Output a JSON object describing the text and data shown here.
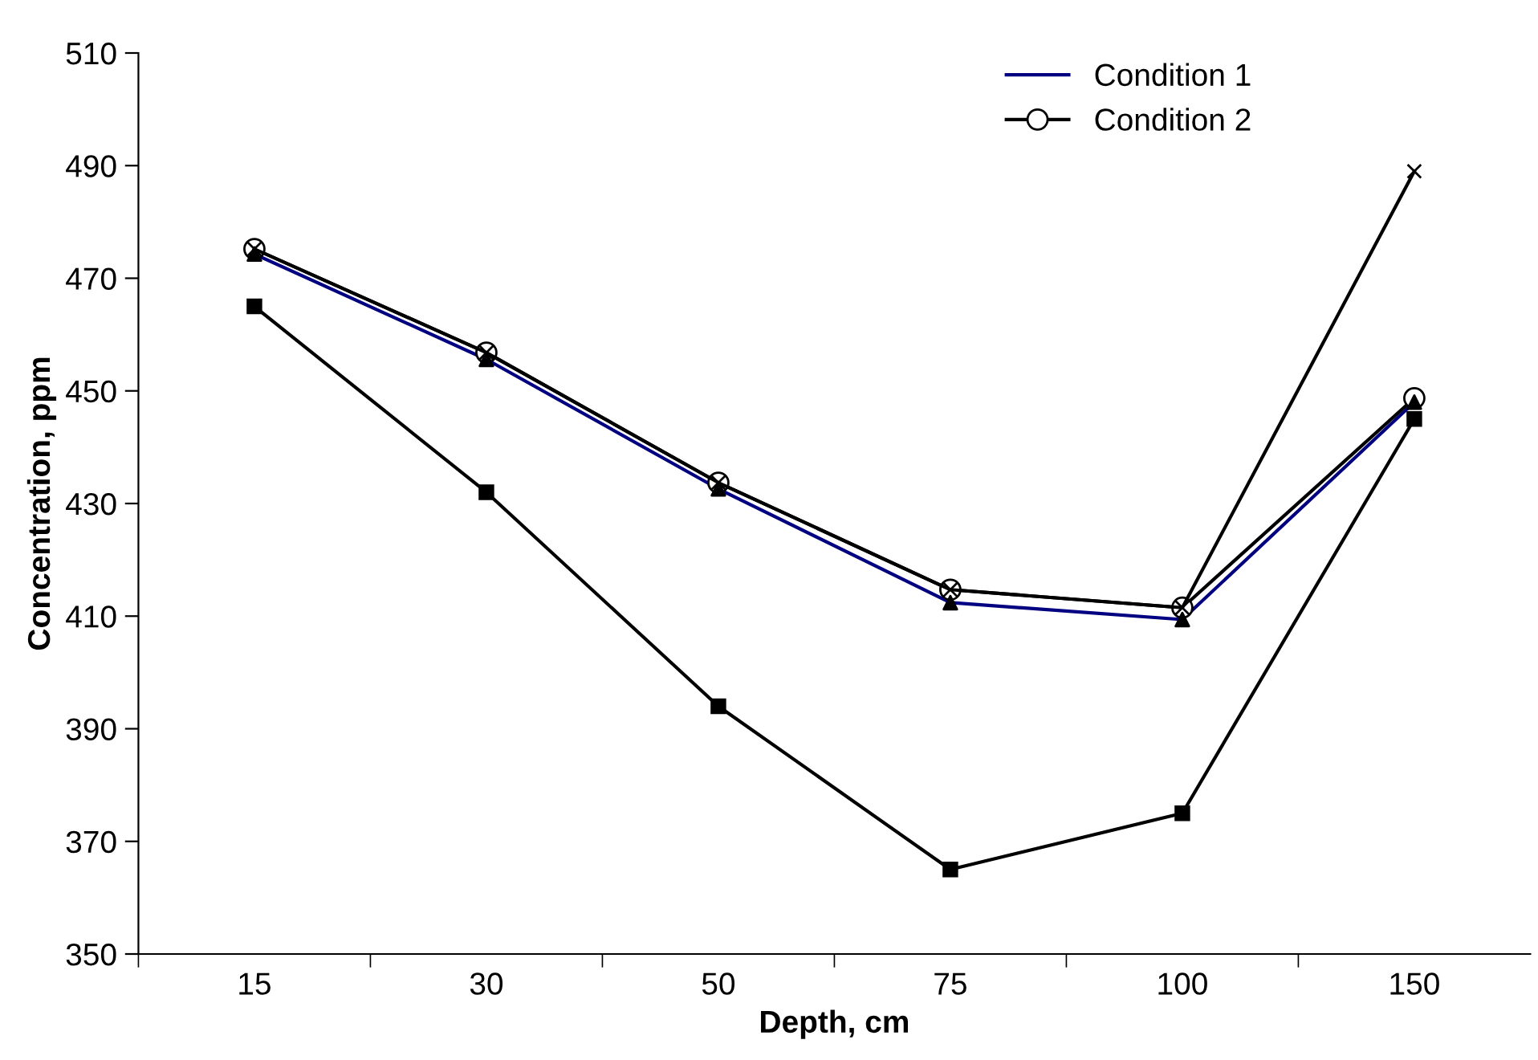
{
  "chart_data": {
    "type": "line",
    "xlabel": "Depth, cm",
    "ylabel": "Concentration, ppm",
    "categories": [
      "15",
      "30",
      "50",
      "75",
      "100",
      "150"
    ],
    "series": [
      {
        "name": "Condition 1",
        "color": "#000080",
        "marker": "none",
        "values": [
          474.3,
          455.6,
          432.6,
          412.4,
          409.4,
          448
        ]
      },
      {
        "name": "Condition 2",
        "color": "#000000",
        "marker": "circle",
        "values": [
          475.2,
          456.8,
          433.7,
          414.7,
          411.5,
          448.7
        ]
      },
      {
        "type": "scatter",
        "color": "#000000",
        "marker": "triangle",
        "values": [
          474.3,
          455.6,
          432.6,
          412.4,
          409.4,
          448
        ]
      },
      {
        "color": "#000000",
        "marker": "square",
        "values": [
          465,
          432,
          394,
          365,
          375,
          445
        ]
      },
      {
        "color": "#000000",
        "marker": "cross",
        "values": [
          475.2,
          456.8,
          433.7,
          414.7,
          411.5,
          489
        ]
      }
    ],
    "ylim": [
      350,
      510
    ],
    "yticks": [
      350,
      370,
      390,
      410,
      430,
      450,
      470,
      490,
      510
    ],
    "grid": false,
    "legend": "top right",
    "line_style": "solid"
  }
}
